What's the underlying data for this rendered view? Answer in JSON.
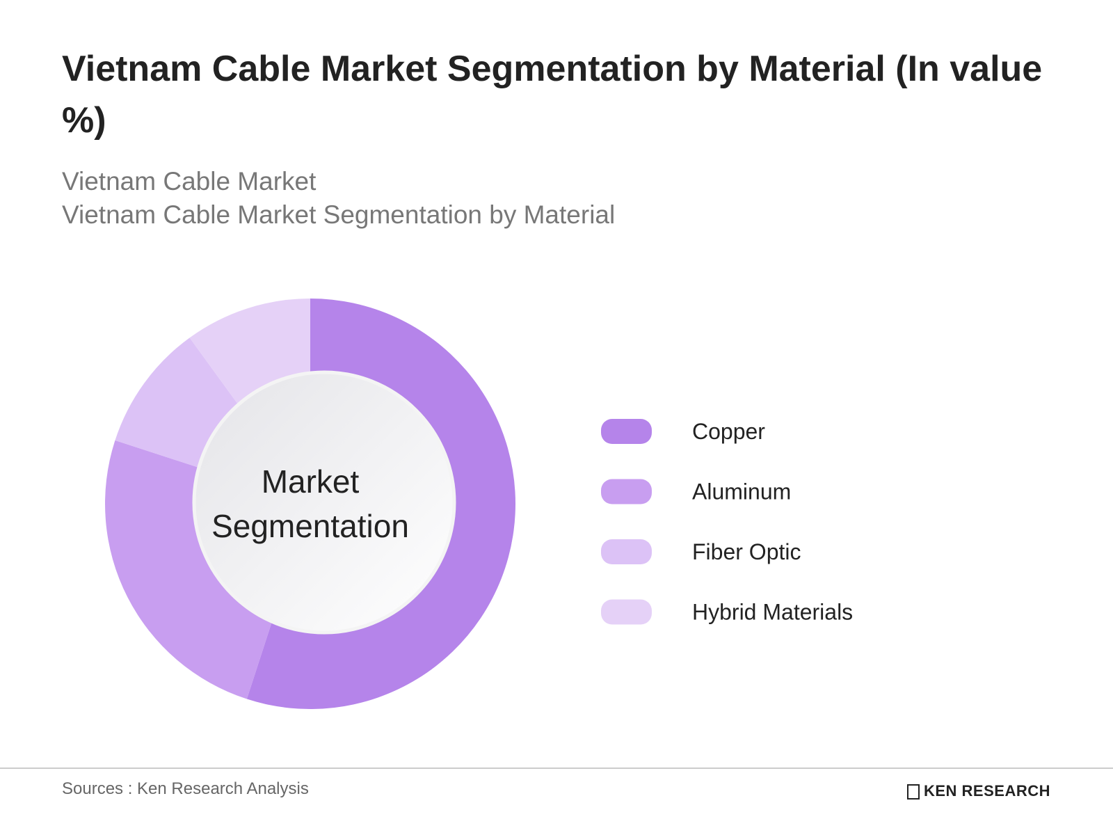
{
  "chart_data": {
    "type": "donut",
    "title": "Vietnam Cable Market Segmentation by Material (In value %)",
    "subtitle": [
      "Vietnam Cable Market",
      "Vietnam Cable Market Segmentation by Material"
    ],
    "center_label": "Market Segmentation",
    "categories": [
      "Copper",
      "Aluminum",
      "Fiber Optic",
      "Hybrid Materials"
    ],
    "values": [
      55,
      25,
      10,
      10
    ],
    "colors": [
      "#b584ea",
      "#c89ef0",
      "#dcc2f6",
      "#e5d1f7"
    ]
  },
  "footer": {
    "source": "Sources : Ken Research Analysis",
    "logo": "KEN RESEARCH"
  }
}
